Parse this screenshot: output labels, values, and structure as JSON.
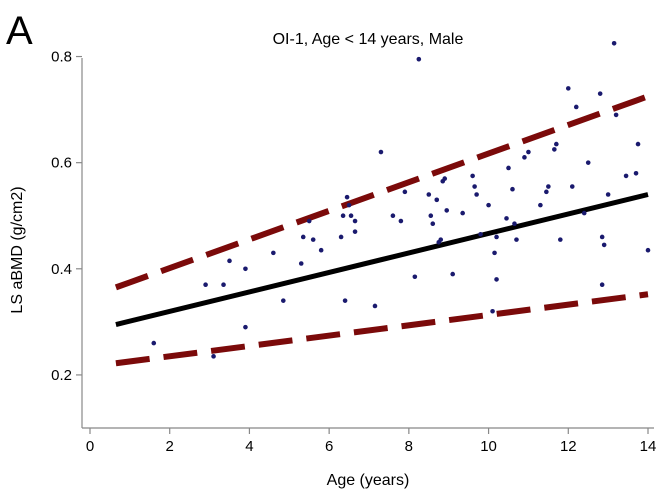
{
  "panel_letter": "A",
  "chart_data": {
    "type": "scatter",
    "title": "OI-1, Age < 14 years, Male",
    "xlabel": "Age (years)",
    "ylabel": "LS aBMD (g/cm2)",
    "xlim": [
      0,
      14
    ],
    "ylim": [
      0.1,
      0.85
    ],
    "x_ticks": [
      0,
      2,
      4,
      6,
      8,
      10,
      12,
      14
    ],
    "y_ticks": [
      0.2,
      0.4,
      0.6,
      0.8
    ],
    "x_tick_labels": [
      "0",
      "2",
      "4",
      "6",
      "8",
      "10",
      "12",
      "14"
    ],
    "y_tick_labels": [
      "0.2",
      "0.4",
      "0.6",
      "0.8"
    ],
    "grid": false,
    "colors": {
      "points": "#1a1a6e",
      "fit": "#000000",
      "bounds": "#7b0a0a",
      "axis": "#888888"
    },
    "points": [
      [
        1.6,
        0.26
      ],
      [
        2.9,
        0.37
      ],
      [
        3.1,
        0.235
      ],
      [
        3.35,
        0.37
      ],
      [
        3.5,
        0.415
      ],
      [
        3.9,
        0.29
      ],
      [
        3.9,
        0.4
      ],
      [
        4.85,
        0.34
      ],
      [
        4.6,
        0.43
      ],
      [
        5.3,
        0.41
      ],
      [
        5.35,
        0.46
      ],
      [
        5.5,
        0.49
      ],
      [
        5.6,
        0.455
      ],
      [
        5.8,
        0.435
      ],
      [
        6.3,
        0.46
      ],
      [
        6.35,
        0.5
      ],
      [
        6.4,
        0.34
      ],
      [
        6.45,
        0.535
      ],
      [
        6.5,
        0.52
      ],
      [
        6.55,
        0.5
      ],
      [
        6.65,
        0.47
      ],
      [
        6.65,
        0.49
      ],
      [
        7.15,
        0.33
      ],
      [
        7.3,
        0.62
      ],
      [
        7.6,
        0.5
      ],
      [
        7.8,
        0.49
      ],
      [
        7.9,
        0.545
      ],
      [
        8.15,
        0.385
      ],
      [
        8.25,
        0.795
      ],
      [
        8.5,
        0.54
      ],
      [
        8.55,
        0.5
      ],
      [
        8.6,
        0.485
      ],
      [
        8.7,
        0.53
      ],
      [
        8.75,
        0.45
      ],
      [
        8.8,
        0.455
      ],
      [
        8.85,
        0.565
      ],
      [
        8.9,
        0.57
      ],
      [
        8.95,
        0.51
      ],
      [
        9.1,
        0.39
      ],
      [
        9.35,
        0.505
      ],
      [
        9.6,
        0.575
      ],
      [
        9.65,
        0.555
      ],
      [
        9.7,
        0.54
      ],
      [
        9.8,
        0.465
      ],
      [
        10.0,
        0.52
      ],
      [
        10.1,
        0.32
      ],
      [
        10.15,
        0.43
      ],
      [
        10.2,
        0.38
      ],
      [
        10.2,
        0.46
      ],
      [
        10.45,
        0.495
      ],
      [
        10.5,
        0.59
      ],
      [
        10.6,
        0.55
      ],
      [
        10.65,
        0.485
      ],
      [
        10.7,
        0.455
      ],
      [
        10.9,
        0.61
      ],
      [
        11.0,
        0.62
      ],
      [
        11.3,
        0.52
      ],
      [
        11.45,
        0.545
      ],
      [
        11.5,
        0.555
      ],
      [
        11.65,
        0.625
      ],
      [
        11.7,
        0.635
      ],
      [
        11.8,
        0.455
      ],
      [
        12.0,
        0.74
      ],
      [
        12.1,
        0.555
      ],
      [
        12.2,
        0.705
      ],
      [
        12.4,
        0.505
      ],
      [
        12.5,
        0.6
      ],
      [
        12.8,
        0.73
      ],
      [
        12.85,
        0.37
      ],
      [
        12.85,
        0.46
      ],
      [
        12.9,
        0.445
      ],
      [
        13.0,
        0.54
      ],
      [
        13.15,
        0.825
      ],
      [
        13.2,
        0.69
      ],
      [
        13.45,
        0.575
      ],
      [
        13.7,
        0.58
      ],
      [
        13.75,
        0.635
      ],
      [
        14.0,
        0.435
      ]
    ],
    "lines": [
      {
        "kind": "fit",
        "style": "solid",
        "x": [
          0.65,
          14.0
        ],
        "y": [
          0.295,
          0.54
        ]
      },
      {
        "kind": "upper-bound",
        "style": "dashed",
        "x": [
          0.65,
          14.0
        ],
        "y": [
          0.365,
          0.725
        ]
      },
      {
        "kind": "lower-bound",
        "style": "dashed",
        "x": [
          0.65,
          14.0
        ],
        "y": [
          0.222,
          0.352
        ]
      }
    ]
  }
}
